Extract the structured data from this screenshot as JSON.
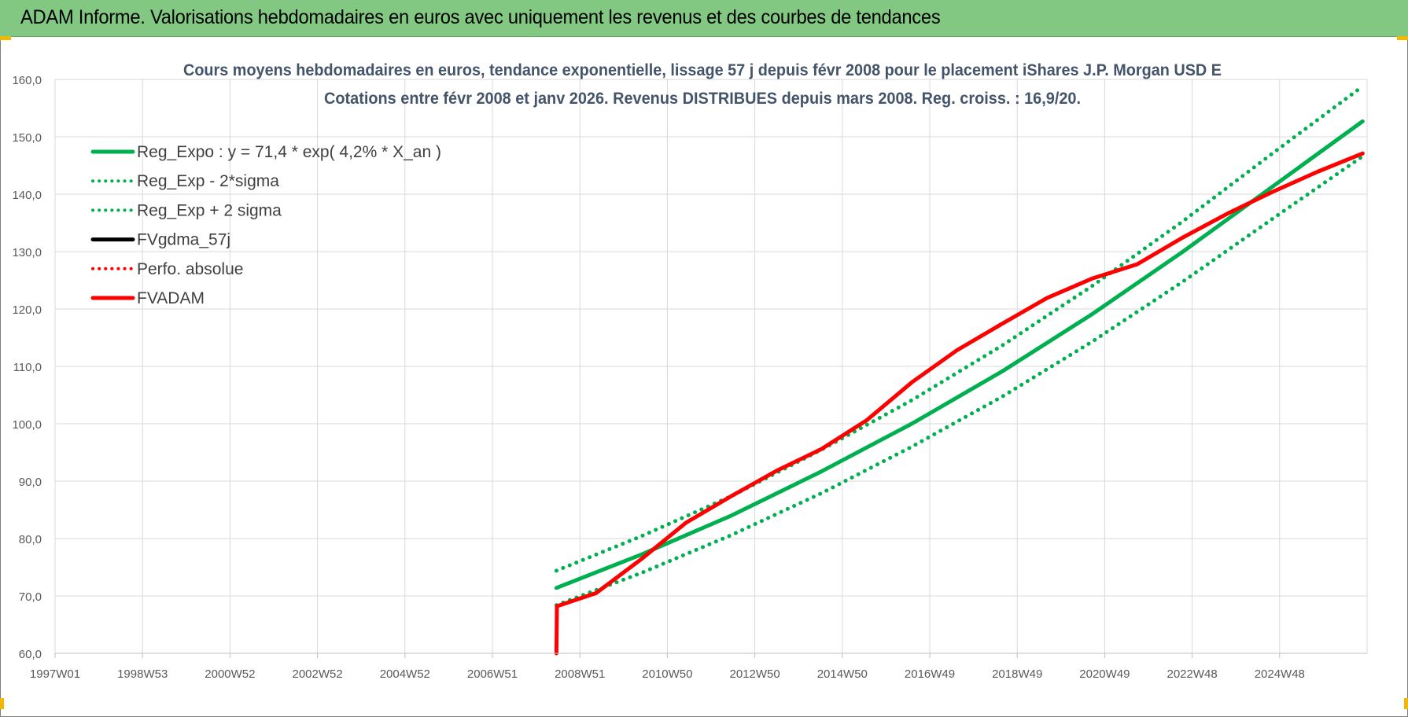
{
  "header": {
    "title": "ADAM Informe. Valorisations hebdomadaires en euros avec uniquement les revenus et des courbes de tendances"
  },
  "colors": {
    "banner": "#82c882",
    "reg_expo": "#00b050",
    "fvadam": "#ff0000",
    "fvgdma": "#000000",
    "grid": "#d9d9d9",
    "axis_text": "#595959",
    "title_text": "#44546a"
  },
  "chart_data": {
    "type": "line",
    "title_line1": "Cours moyens hebdomadaires en euros, tendance exponentielle, lissage 57 j depuis févr 2008 pour le placement iShares J.P. Morgan USD E",
    "title_line2": "Cotations entre févr 2008 et janv 2026. Revenus DISTRIBUES depuis mars 2008. Reg. croiss. : 16,9/20.",
    "x_tick_labels": [
      "1997W01",
      "1998W53",
      "2000W52",
      "2002W52",
      "2004W52",
      "2006W51",
      "2008W51",
      "2010W50",
      "2012W50",
      "2014W50",
      "2016W49",
      "2018W49",
      "2020W49",
      "2022W48",
      "2024W48"
    ],
    "x_range": [
      1997.0,
      2026.1
    ],
    "y_ticks": [
      "60,0",
      "70,0",
      "80,0",
      "90,0",
      "100,0",
      "110,0",
      "120,0",
      "130,0",
      "140,0",
      "150,0",
      "160,0"
    ],
    "ylim": [
      60,
      160
    ],
    "grid": true,
    "legend_position": "top-left",
    "legend": [
      {
        "label": "Reg_Expo : y = 71,4 * exp( 4,2% *  X_an )",
        "color": "#00b050",
        "style": "solid"
      },
      {
        "label": "Reg_Exp - 2*sigma",
        "color": "#00b050",
        "style": "dotted"
      },
      {
        "label": "Reg_Exp + 2 sigma",
        "color": "#00b050",
        "style": "dotted"
      },
      {
        "label": "FVgdma_57j",
        "color": "#000000",
        "style": "solid"
      },
      {
        "label": "Perfo. absolue",
        "color": "#ff0000",
        "style": "dotted"
      },
      {
        "label": "FVADAM",
        "color": "#ff0000",
        "style": "solid"
      }
    ],
    "series": [
      {
        "name": "Reg_Expo : y = 71,4 * exp( 4,2% *  X_an )",
        "style": "solid",
        "color": "#00b050",
        "x": [
          2008.12,
          2010,
          2012,
          2014,
          2016,
          2018,
          2020,
          2022,
          2024,
          2026.0
        ],
        "y": [
          71.4,
          77.2,
          84.0,
          91.7,
          100.0,
          109.1,
          119.1,
          129.9,
          141.3,
          152.7
        ]
      },
      {
        "name": "Reg_Exp - 2*sigma",
        "style": "dotted",
        "color": "#00b050",
        "x": [
          2008.12,
          2010,
          2012,
          2014,
          2016,
          2018,
          2020,
          2022,
          2024,
          2026.0
        ],
        "y": [
          68.4,
          74.0,
          80.6,
          87.9,
          96.0,
          104.7,
          114.3,
          124.7,
          135.7,
          146.6
        ]
      },
      {
        "name": "Reg_Exp + 2 sigma",
        "style": "dotted",
        "color": "#00b050",
        "x": [
          2008.12,
          2010,
          2012,
          2014,
          2016,
          2018,
          2020,
          2022,
          2024,
          2026.0
        ],
        "y": [
          74.4,
          80.4,
          87.4,
          95.5,
          104.1,
          113.6,
          124.0,
          135.2,
          147.1,
          158.8
        ]
      },
      {
        "name": "Perfo. absolue",
        "style": "dotted",
        "color": "#ff0000",
        "x": [
          2008.12,
          2008.13,
          2009,
          2010,
          2011,
          2012,
          2013,
          2014,
          2015,
          2016,
          2017,
          2018,
          2019,
          2020,
          2021,
          2022,
          2023,
          2024,
          2025,
          2026.0
        ],
        "y": [
          60.0,
          68.2,
          70.5,
          76.4,
          82.8,
          87.4,
          91.8,
          95.6,
          100.6,
          107.2,
          112.8,
          117.4,
          121.9,
          125.3,
          127.8,
          132.4,
          136.6,
          140.4,
          143.9,
          147.1
        ]
      },
      {
        "name": "FVADAM",
        "style": "solid",
        "color": "#ff0000",
        "x": [
          2008.12,
          2008.13,
          2009,
          2010,
          2011,
          2012,
          2013,
          2014,
          2015,
          2016,
          2017,
          2018,
          2019,
          2020,
          2021,
          2022,
          2023,
          2024,
          2025,
          2026.0
        ],
        "y": [
          60.0,
          68.2,
          70.5,
          76.4,
          82.8,
          87.4,
          91.8,
          95.6,
          100.6,
          107.2,
          112.8,
          117.4,
          121.9,
          125.3,
          127.8,
          132.4,
          136.6,
          140.4,
          143.9,
          147.1
        ]
      }
    ]
  }
}
